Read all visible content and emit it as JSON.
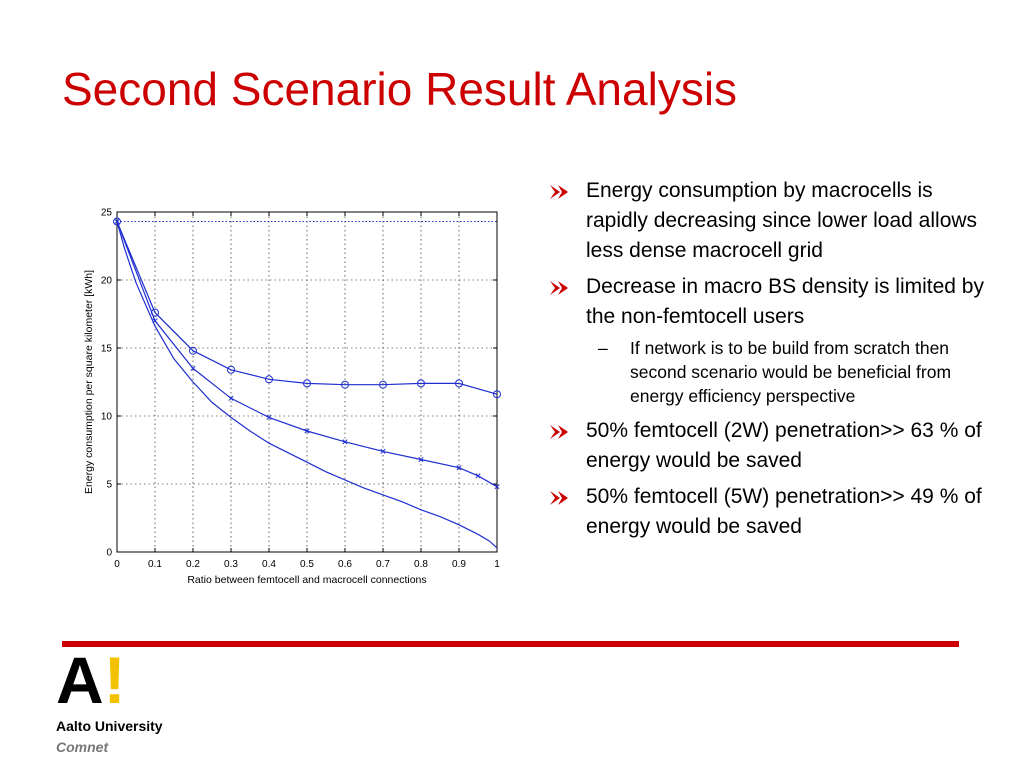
{
  "slide": {
    "title": "Second Scenario Result Analysis",
    "bullets": [
      {
        "text": "Energy consumption by macrocells is rapidly decreasing since lower load allows less dense macrocell grid"
      },
      {
        "text": "Decrease in macro BS density is limited by the non-femtocell users",
        "sub": [
          "If network is to be build from scratch then second scenario would be beneficial from energy efficiency perspective"
        ]
      },
      {
        "text": "50% femtocell (2W) penetration>> 63 % of energy would be saved"
      },
      {
        "text": "50% femtocell (5W) penetration>> 49 % of energy would be saved"
      }
    ],
    "dash": "–",
    "bullet_icon": "arrow-bullet-icon",
    "accent_color": "#cc0000"
  },
  "footer": {
    "logo_letter": "A",
    "logo_mark": "!",
    "university": "Aalto University",
    "department": "Comnet"
  },
  "chart_data": {
    "type": "line",
    "title": "",
    "xlabel": "Ratio between femtocell and macrocell connections",
    "ylabel": "Energy consumption per square kilometer [kWh]",
    "xlim": [
      0,
      1
    ],
    "ylim": [
      0,
      25
    ],
    "xticks": [
      "0",
      "0.1",
      "0.2",
      "0.3",
      "0.4",
      "0.5",
      "0.6",
      "0.7",
      "0.8",
      "0.9",
      "1"
    ],
    "yticks": [
      "0",
      "5",
      "10",
      "15",
      "20",
      "25"
    ],
    "grid": true,
    "line_color": "#1f2fd0",
    "series": [
      {
        "marker": "none",
        "x": [
          0,
          0.02,
          0.05,
          0.1,
          0.15,
          0.2,
          0.25,
          0.3,
          0.35,
          0.4,
          0.45,
          0.5,
          0.55,
          0.6,
          0.65,
          0.7,
          0.75,
          0.8,
          0.85,
          0.9,
          0.95,
          0.98,
          1
        ],
        "y": [
          24.3,
          22.3,
          19.8,
          16.6,
          14.2,
          12.5,
          11.0,
          9.9,
          8.9,
          8.0,
          7.3,
          6.6,
          5.9,
          5.3,
          4.7,
          4.2,
          3.7,
          3.1,
          2.6,
          2.0,
          1.3,
          0.8,
          0.3
        ]
      },
      {
        "marker": "x",
        "x": [
          0,
          0.1,
          0.2,
          0.3,
          0.4,
          0.5,
          0.6,
          0.7,
          0.8,
          0.9,
          0.95,
          1
        ],
        "y": [
          24.3,
          17.0,
          13.5,
          11.3,
          9.9,
          8.9,
          8.1,
          7.4,
          6.8,
          6.2,
          5.6,
          4.8
        ]
      },
      {
        "marker": "o",
        "x": [
          0,
          0.1,
          0.2,
          0.3,
          0.4,
          0.5,
          0.6,
          0.7,
          0.8,
          0.9,
          1
        ],
        "y": [
          24.3,
          17.6,
          14.8,
          13.4,
          12.7,
          12.4,
          12.3,
          12.3,
          12.4,
          12.4,
          11.6
        ]
      },
      {
        "marker": "none",
        "style": "dotted",
        "x": [
          0,
          1
        ],
        "y": [
          24.3,
          24.3
        ]
      }
    ]
  }
}
